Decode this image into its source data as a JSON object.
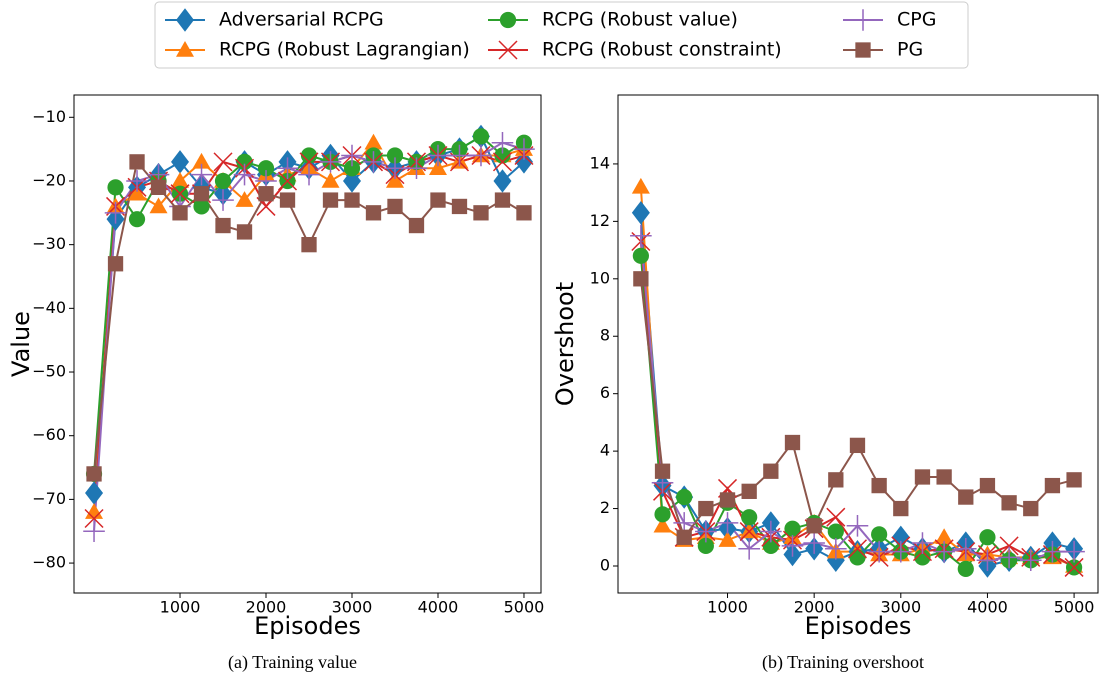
{
  "chart_data": [
    {
      "type": "line",
      "legend": "upper center",
      "ylabel": "Value",
      "xlabel": "Episodes",
      "caption": "(a) Training value",
      "x": [
        0,
        250,
        500,
        750,
        1000,
        1250,
        1500,
        1750,
        2000,
        2250,
        2500,
        2750,
        3000,
        3250,
        3500,
        3750,
        4000,
        4250,
        4500,
        4750,
        5000
      ],
      "xlim": [
        -233,
        5198
      ],
      "xticks": [
        1000,
        2000,
        3000,
        4000,
        5000
      ],
      "ylim": [
        -84.7,
        -6.5
      ],
      "yticks": [
        {
          "value": -80,
          "label": "−80"
        },
        {
          "value": -70,
          "label": "−70"
        },
        {
          "value": -60,
          "label": "−60"
        },
        {
          "value": -50,
          "label": "−50"
        },
        {
          "value": -40,
          "label": "−40"
        },
        {
          "value": -30,
          "label": "−30"
        },
        {
          "value": -20,
          "label": "−20"
        },
        {
          "value": -10,
          "label": "−10"
        }
      ],
      "series": [
        {
          "name": "Adversarial RCPG",
          "color": "#1f77b4",
          "marker": "diamond",
          "values": [
            -69,
            -26,
            -21,
            -19,
            -17,
            -21,
            -22,
            -17,
            -19,
            -17,
            -18,
            -16,
            -20,
            -17,
            -18,
            -17,
            -16,
            -15,
            -13,
            -20,
            -17
          ]
        },
        {
          "name": "RCPG (Robust Lagrangian)",
          "color": "#ff7f0e",
          "marker": "triangle",
          "values": [
            -72,
            -24,
            -22,
            -24,
            -20,
            -17,
            -20,
            -23,
            -19,
            -19,
            -18,
            -20,
            -18,
            -14,
            -20,
            -18,
            -18,
            -17,
            -16,
            -16,
            -15
          ]
        },
        {
          "name": "RCPG (Robust value)",
          "color": "#2ca02c",
          "marker": "circle",
          "values": [
            -66,
            -21,
            -26,
            -20,
            -22,
            -24,
            -20,
            -17,
            -18,
            -20,
            -16,
            -17,
            -18,
            -16,
            -16,
            -17,
            -15,
            -15,
            -13,
            -16,
            -14
          ]
        },
        {
          "name": "RCPG (Robust constraint)",
          "color": "#d62728",
          "marker": "x",
          "values": [
            -73,
            -24,
            -21,
            -20,
            -22,
            -22,
            -17,
            -18,
            -24,
            -20,
            -17,
            -17,
            -16,
            -17,
            -19,
            -17,
            -16,
            -17,
            -16,
            -17,
            -16
          ]
        },
        {
          "name": "CPG",
          "color": "#9467bd",
          "marker": "plus",
          "values": [
            -75,
            -25,
            -20,
            -19,
            -24,
            -19,
            -23,
            -19,
            -20,
            -18,
            -19,
            -17,
            -16,
            -17,
            -18,
            -18,
            -16,
            -16,
            -16,
            -14,
            -15
          ]
        },
        {
          "name": "PG",
          "color": "#8c564b",
          "marker": "square",
          "values": [
            -66,
            -33,
            -17,
            -21,
            -25,
            -22,
            -27,
            -28,
            -22,
            -23,
            -30,
            -23,
            -23,
            -25,
            -24,
            -27,
            -23,
            -24,
            -25,
            -23,
            -25
          ]
        }
      ]
    },
    {
      "type": "line",
      "ylabel": "Overshoot",
      "xlabel": "Episodes",
      "caption": "(b) Training overshoot",
      "x": [
        0,
        250,
        500,
        750,
        1000,
        1250,
        1500,
        1750,
        2000,
        2250,
        2500,
        2750,
        3000,
        3250,
        3500,
        3750,
        4000,
        4250,
        4500,
        4750,
        5000
      ],
      "xlim": [
        -264,
        5276
      ],
      "xticks": [
        1000,
        2000,
        3000,
        4000,
        5000
      ],
      "ylim": [
        -0.94,
        16.4
      ],
      "yticks": [
        0,
        2,
        4,
        6,
        8,
        10,
        12,
        14
      ],
      "series": [
        {
          "name": "Adversarial RCPG",
          "color": "#1f77b4",
          "marker": "diamond",
          "values": [
            12.3,
            2.8,
            2.4,
            1.2,
            1.3,
            1.2,
            1.5,
            0.4,
            0.6,
            0.2,
            0.5,
            0.6,
            1.0,
            0.6,
            0.5,
            0.8,
            0.0,
            0.2,
            0.3,
            0.8,
            0.6
          ]
        },
        {
          "name": "RCPG (Robust Lagrangian)",
          "color": "#ff7f0e",
          "marker": "triangle",
          "values": [
            13.2,
            1.4,
            0.9,
            1.0,
            0.9,
            1.2,
            0.8,
            1.0,
            1.5,
            0.5,
            0.5,
            0.4,
            0.4,
            0.6,
            1.0,
            0.4,
            0.4,
            0.3,
            0.3,
            0.3,
            0.0
          ]
        },
        {
          "name": "RCPG (Robust value)",
          "color": "#2ca02c",
          "marker": "circle",
          "values": [
            10.8,
            1.8,
            2.4,
            0.7,
            2.2,
            1.7,
            0.7,
            1.3,
            1.5,
            1.2,
            0.3,
            1.1,
            0.5,
            0.3,
            0.5,
            -0.1,
            1.0,
            0.2,
            0.2,
            0.4,
            -0.05
          ]
        },
        {
          "name": "RCPG (Robust constraint)",
          "color": "#d62728",
          "marker": "x",
          "values": [
            11.3,
            2.6,
            1.0,
            1.2,
            2.7,
            1.2,
            1.0,
            0.9,
            1.3,
            1.7,
            0.6,
            0.3,
            0.7,
            0.5,
            0.6,
            0.5,
            0.4,
            0.7,
            0.3,
            0.4,
            -0.05
          ]
        },
        {
          "name": "CPG",
          "color": "#9467bd",
          "marker": "plus",
          "values": [
            11.5,
            2.9,
            1.5,
            1.2,
            1.5,
            0.6,
            1.2,
            0.7,
            0.8,
            0.6,
            1.4,
            0.5,
            0.5,
            0.8,
            0.5,
            0.6,
            0.2,
            0.3,
            0.2,
            0.5,
            0.5
          ]
        },
        {
          "name": "PG",
          "color": "#8c564b",
          "marker": "square",
          "values": [
            10.0,
            3.3,
            1.0,
            2.0,
            2.3,
            2.6,
            3.3,
            4.3,
            1.4,
            3.0,
            4.2,
            2.8,
            2.0,
            3.1,
            3.1,
            2.4,
            2.8,
            2.2,
            2.0,
            2.8,
            3.0
          ]
        }
      ]
    }
  ]
}
